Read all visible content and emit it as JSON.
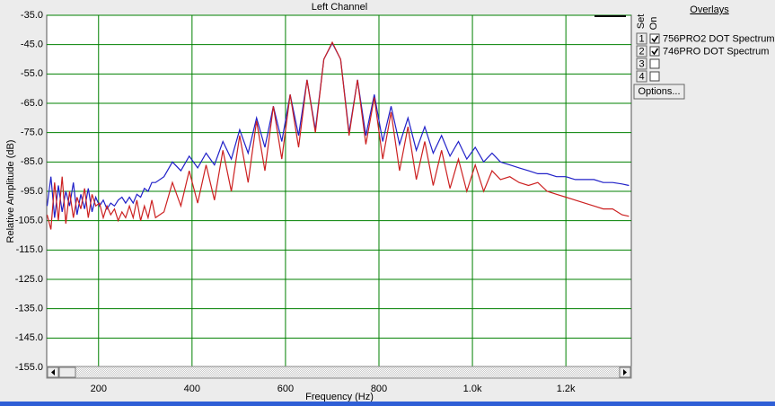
{
  "chart_data": {
    "type": "line",
    "title": "Left Channel",
    "x_label": "Frequency (Hz)",
    "y_label": "Relative Amplitude (dB)",
    "x": [
      90,
      98,
      106,
      114,
      122,
      130,
      138,
      146,
      154,
      162,
      170,
      178,
      186,
      194,
      202,
      210,
      218,
      226,
      234,
      242,
      250,
      258,
      266,
      274,
      282,
      290,
      298,
      306,
      314,
      322,
      340,
      358,
      376,
      394,
      412,
      430,
      448,
      466,
      484,
      502,
      520,
      538,
      556,
      574,
      592,
      610,
      628,
      646,
      664,
      682,
      700,
      718,
      736,
      754,
      772,
      790,
      808,
      826,
      844,
      862,
      880,
      898,
      916,
      934,
      952,
      970,
      988,
      1006,
      1024,
      1042,
      1060,
      1080,
      1100,
      1120,
      1140,
      1160,
      1180,
      1200,
      1220,
      1240,
      1260,
      1280,
      1300,
      1320,
      1335
    ],
    "series": [
      {
        "name": "756PRO2 DOT Spectrum",
        "color": "#2020c8",
        "values": [
          -100,
          -90,
          -104,
          -93,
          -102,
          -95,
          -100,
          -92,
          -103,
          -96,
          -101,
          -94,
          -102,
          -97,
          -100,
          -98,
          -101,
          -99,
          -100,
          -98,
          -97,
          -99,
          -97,
          -99,
          -96,
          -97,
          -94,
          -95,
          -92,
          -92,
          -90,
          -85,
          -88,
          -83,
          -87,
          -82,
          -86,
          -78,
          -84,
          -74,
          -82,
          -70,
          -80,
          -66,
          -78,
          -62,
          -76,
          -57,
          -74,
          -50,
          -44.5,
          -50,
          -75,
          -57,
          -76,
          -62,
          -78,
          -66,
          -79,
          -70,
          -81,
          -73,
          -82,
          -76,
          -83,
          -78,
          -84,
          -80,
          -85,
          -82,
          -85,
          -86,
          -87,
          -88,
          -89,
          -89,
          -90,
          -90,
          -91,
          -91,
          -91,
          -92,
          -92,
          -92.5,
          -93
        ]
      },
      {
        "name": "746PRO DOT Spectrum",
        "color": "#cc2020",
        "values": [
          -103,
          -108,
          -92,
          -105,
          -90,
          -106,
          -95,
          -104,
          -97,
          -101,
          -94,
          -104,
          -96,
          -100,
          -99,
          -104,
          -100,
          -103,
          -101,
          -105,
          -102,
          -104,
          -100,
          -104,
          -98,
          -105,
          -100,
          -104,
          -98,
          -104,
          -102,
          -92,
          -100,
          -88,
          -99,
          -86,
          -98,
          -81,
          -95,
          -76,
          -92,
          -71,
          -88,
          -66,
          -84,
          -62,
          -80,
          -57,
          -75,
          -50,
          -44.2,
          -50,
          -76,
          -57,
          -79,
          -63,
          -84,
          -68,
          -88,
          -73,
          -91,
          -78,
          -93,
          -81,
          -94,
          -84,
          -95,
          -86,
          -95,
          -88,
          -91,
          -90,
          -92,
          -93,
          -92,
          -95,
          -96,
          -97,
          -98,
          -99,
          -100,
          -101,
          -101,
          -103,
          -103.5
        ]
      }
    ],
    "xlim": [
      89,
      1340
    ],
    "ylim": [
      -155,
      -35
    ],
    "xticks": [
      200,
      400,
      600,
      800,
      {
        "value": 1000,
        "label": "1.0k"
      },
      {
        "value": 1200,
        "label": "1.2k"
      }
    ],
    "yticks": [
      {
        "value": -35,
        "label": "-35.0"
      },
      {
        "value": -45,
        "label": "-45.0"
      },
      {
        "value": -55,
        "label": "-55.0"
      },
      {
        "value": -65,
        "label": "-65.0"
      },
      {
        "value": -75,
        "label": "-75.0"
      },
      {
        "value": -85,
        "label": "-85.0"
      },
      {
        "value": -95,
        "label": "-95.0"
      },
      {
        "value": -105,
        "label": "-105.0"
      },
      {
        "value": -115,
        "label": "-115.0"
      },
      {
        "value": -125,
        "label": "-125.0"
      },
      {
        "value": -135,
        "label": "-135.0"
      },
      {
        "value": -145,
        "label": "-145.0"
      },
      {
        "value": -155,
        "label": "-155.0"
      }
    ],
    "grid": true,
    "grid_color": "#008000"
  },
  "overlays": {
    "title": "Overlays",
    "set_header": "Set",
    "on_header": "On",
    "slots": [
      "1",
      "2",
      "3",
      "4"
    ],
    "checked": [
      true,
      true,
      false,
      false
    ],
    "options_button": "Options..."
  }
}
